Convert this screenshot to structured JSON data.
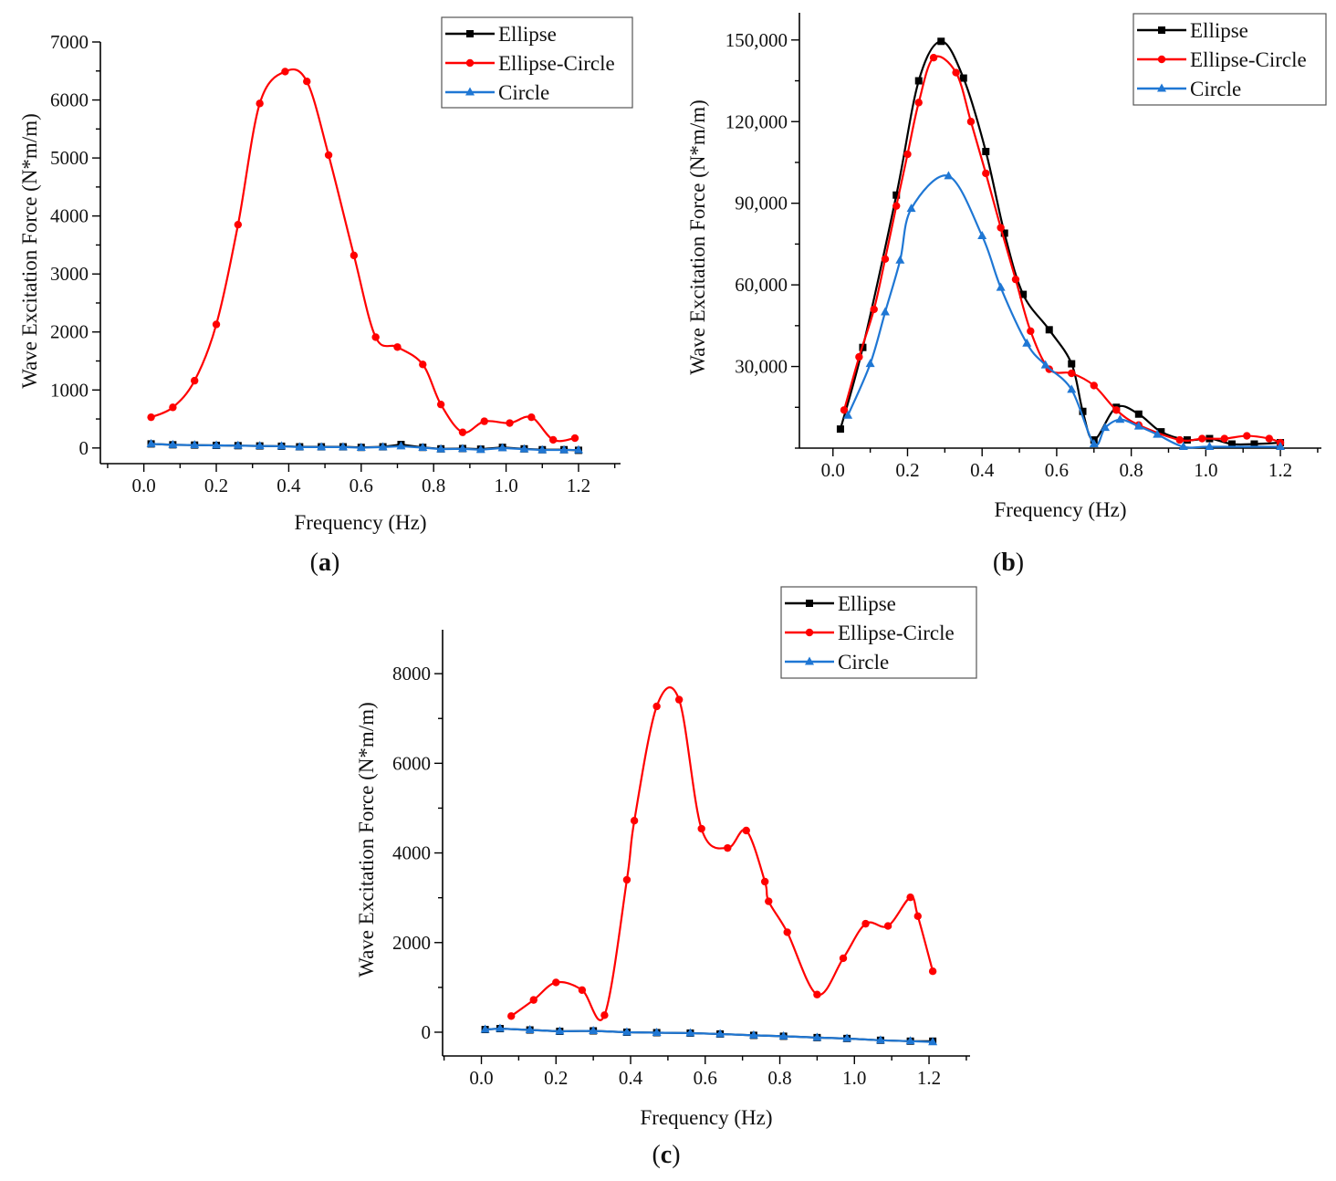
{
  "figure": {
    "panels": [
      "a",
      "b",
      "c"
    ]
  },
  "chart_data": [
    {
      "id": "a",
      "caption": "a",
      "type": "line",
      "title": "",
      "xlabel": "Frequency (Hz)",
      "ylabel": "Wave Excitation Force (N*m/m)",
      "xlim": [
        -0.12,
        1.316
      ],
      "ylim": [
        -270,
        7000
      ],
      "xticks": [
        0.0,
        0.2,
        0.4,
        0.6,
        0.8,
        1.0,
        1.2
      ],
      "xtick_labels": [
        "0.0",
        "0.2",
        "0.4",
        "0.6",
        "0.8",
        "1.0",
        "1.2"
      ],
      "yticks": [
        0,
        1000,
        2000,
        3000,
        4000,
        5000,
        6000,
        7000
      ],
      "ytick_labels": [
        "0",
        "1000",
        "2000",
        "3000",
        "4000",
        "5000",
        "6000",
        "7000"
      ],
      "grid": false,
      "legend": "top-right",
      "series": [
        {
          "name": "Ellipse",
          "color": "#000000",
          "marker": "square",
          "smooth": false,
          "x": [
            0.02,
            0.08,
            0.14,
            0.2,
            0.26,
            0.32,
            0.38,
            0.43,
            0.49,
            0.55,
            0.6,
            0.66,
            0.71,
            0.77,
            0.82,
            0.88,
            0.93,
            0.99,
            1.05,
            1.1,
            1.16,
            1.2
          ],
          "y": [
            70,
            55,
            50,
            45,
            40,
            35,
            30,
            20,
            20,
            20,
            10,
            20,
            60,
            10,
            -15,
            -10,
            -20,
            10,
            -15,
            -30,
            -30,
            -40
          ]
        },
        {
          "name": "Ellipse-Circle",
          "color": "#ff0000",
          "marker": "circle",
          "smooth": true,
          "x": [
            0.02,
            0.08,
            0.14,
            0.2,
            0.26,
            0.32,
            0.39,
            0.45,
            0.51,
            0.58,
            0.64,
            0.7,
            0.77,
            0.82,
            0.88,
            0.94,
            1.01,
            1.07,
            1.13,
            1.19
          ],
          "y": [
            530,
            700,
            1160,
            2130,
            3850,
            5940,
            6490,
            6320,
            5050,
            3320,
            1910,
            1740,
            1440,
            750,
            270,
            460,
            430,
            530,
            140,
            170
          ]
        },
        {
          "name": "Circle",
          "color": "#1f77d4",
          "marker": "triangle",
          "smooth": false,
          "x": [
            0.02,
            0.08,
            0.14,
            0.2,
            0.26,
            0.32,
            0.38,
            0.43,
            0.49,
            0.55,
            0.6,
            0.66,
            0.71,
            0.77,
            0.82,
            0.88,
            0.93,
            0.99,
            1.05,
            1.1,
            1.16,
            1.2
          ],
          "y": [
            70,
            55,
            50,
            45,
            40,
            35,
            30,
            15,
            15,
            15,
            5,
            15,
            30,
            5,
            -20,
            -15,
            -30,
            0,
            -20,
            -35,
            -35,
            -35
          ]
        }
      ]
    },
    {
      "id": "b",
      "caption": "b",
      "type": "line",
      "title": "",
      "xlabel": "Frequency (Hz)",
      "ylabel": "Wave Excitation Force (N*m/m)",
      "xlim": [
        -0.09,
        1.31
      ],
      "ylim": [
        0,
        160000
      ],
      "xticks": [
        0.0,
        0.2,
        0.4,
        0.6,
        0.8,
        1.0,
        1.2
      ],
      "xtick_labels": [
        "0.0",
        "0.2",
        "0.4",
        "0.6",
        "0.8",
        "1.0",
        "1.2"
      ],
      "yticks": [
        30000,
        60000,
        90000,
        120000,
        150000
      ],
      "ytick_labels": [
        "30,000",
        "60,000",
        "90,000",
        "120,000",
        "150,000"
      ],
      "grid": false,
      "legend": "top-right",
      "series": [
        {
          "name": "Ellipse",
          "color": "#000000",
          "marker": "square",
          "smooth": true,
          "x": [
            0.02,
            0.08,
            0.17,
            0.23,
            0.29,
            0.35,
            0.41,
            0.46,
            0.51,
            0.58,
            0.64,
            0.67,
            0.7,
            0.76,
            0.82,
            0.88,
            0.95,
            1.01,
            1.07,
            1.13,
            1.2
          ],
          "y": [
            7000,
            37000,
            93000,
            135000,
            149500,
            136000,
            109000,
            79000,
            56500,
            43500,
            31000,
            13500,
            3000,
            15000,
            12500,
            6000,
            3000,
            3500,
            1500,
            1500,
            2000
          ]
        },
        {
          "name": "Ellipse-Circle",
          "color": "#ff0000",
          "marker": "circle",
          "smooth": true,
          "x": [
            0.03,
            0.07,
            0.11,
            0.14,
            0.17,
            0.2,
            0.23,
            0.27,
            0.33,
            0.37,
            0.41,
            0.45,
            0.49,
            0.53,
            0.58,
            0.64,
            0.7,
            0.76,
            0.82,
            0.93,
            0.99,
            1.05,
            1.11,
            1.17,
            1.2
          ],
          "y": [
            14000,
            33500,
            51000,
            69500,
            89000,
            108000,
            127000,
            143500,
            138000,
            120000,
            101000,
            81000,
            62000,
            43000,
            29000,
            27500,
            23000,
            14000,
            8500,
            3000,
            3500,
            3500,
            4500,
            3500,
            2000
          ]
        },
        {
          "name": "Circle",
          "color": "#1f77d4",
          "marker": "triangle",
          "smooth": true,
          "x": [
            0.04,
            0.1,
            0.14,
            0.18,
            0.21,
            0.31,
            0.4,
            0.45,
            0.52,
            0.57,
            0.64,
            0.7,
            0.73,
            0.77,
            0.82,
            0.87,
            0.94,
            1.01,
            1.2
          ],
          "y": [
            12000,
            31000,
            50000,
            69000,
            88000,
            100000,
            78000,
            59000,
            38500,
            30500,
            21500,
            1500,
            7500,
            10500,
            8000,
            5000,
            500,
            500,
            500
          ]
        }
      ]
    },
    {
      "id": "c",
      "caption": "c",
      "type": "line",
      "title": "",
      "xlabel": "Frequency (Hz)",
      "ylabel": "Wave Excitation Force (N*m/m)",
      "xlim": [
        -0.104,
        1.31
      ],
      "ylim": [
        -530,
        8980
      ],
      "xticks": [
        0.0,
        0.2,
        0.4,
        0.6,
        0.8,
        1.0,
        1.2
      ],
      "xtick_labels": [
        "0.0",
        "0.2",
        "0.4",
        "0.6",
        "0.8",
        "1.0",
        "1.2"
      ],
      "yticks": [
        0,
        2000,
        4000,
        6000,
        8000
      ],
      "ytick_labels": [
        "0",
        "2000",
        "4000",
        "6000",
        "8000"
      ],
      "grid": false,
      "legend": "top-right",
      "series": [
        {
          "name": "Ellipse",
          "color": "#000000",
          "marker": "square",
          "smooth": false,
          "x": [
            0.01,
            0.05,
            0.13,
            0.21,
            0.3,
            0.39,
            0.47,
            0.56,
            0.64,
            0.73,
            0.81,
            0.9,
            0.98,
            1.07,
            1.15,
            1.21
          ],
          "y": [
            60,
            80,
            50,
            20,
            30,
            0,
            -10,
            -20,
            -40,
            -70,
            -90,
            -120,
            -140,
            -180,
            -200,
            -200
          ]
        },
        {
          "name": "Ellipse-Circle",
          "color": "#ff0000",
          "marker": "circle",
          "smooth": true,
          "x": [
            0.08,
            0.14,
            0.2,
            0.27,
            0.33,
            0.39,
            0.41,
            0.47,
            0.53,
            0.59,
            0.66,
            0.71,
            0.76,
            0.77,
            0.82,
            0.9,
            0.97,
            1.03,
            1.09,
            1.15,
            1.17,
            1.21
          ],
          "y": [
            360,
            720,
            1110,
            940,
            380,
            3400,
            4720,
            7270,
            7420,
            4540,
            4110,
            4500,
            3360,
            2920,
            2230,
            840,
            1650,
            2420,
            2370,
            3010,
            2590,
            1360
          ]
        },
        {
          "name": "Circle",
          "color": "#1f77d4",
          "marker": "triangle",
          "smooth": false,
          "x": [
            0.01,
            0.05,
            0.13,
            0.21,
            0.3,
            0.39,
            0.47,
            0.56,
            0.64,
            0.73,
            0.81,
            0.9,
            0.98,
            1.07,
            1.15,
            1.21
          ],
          "y": [
            60,
            80,
            50,
            20,
            30,
            0,
            -10,
            -20,
            -40,
            -70,
            -90,
            -120,
            -140,
            -180,
            -200,
            -220
          ]
        }
      ]
    }
  ]
}
